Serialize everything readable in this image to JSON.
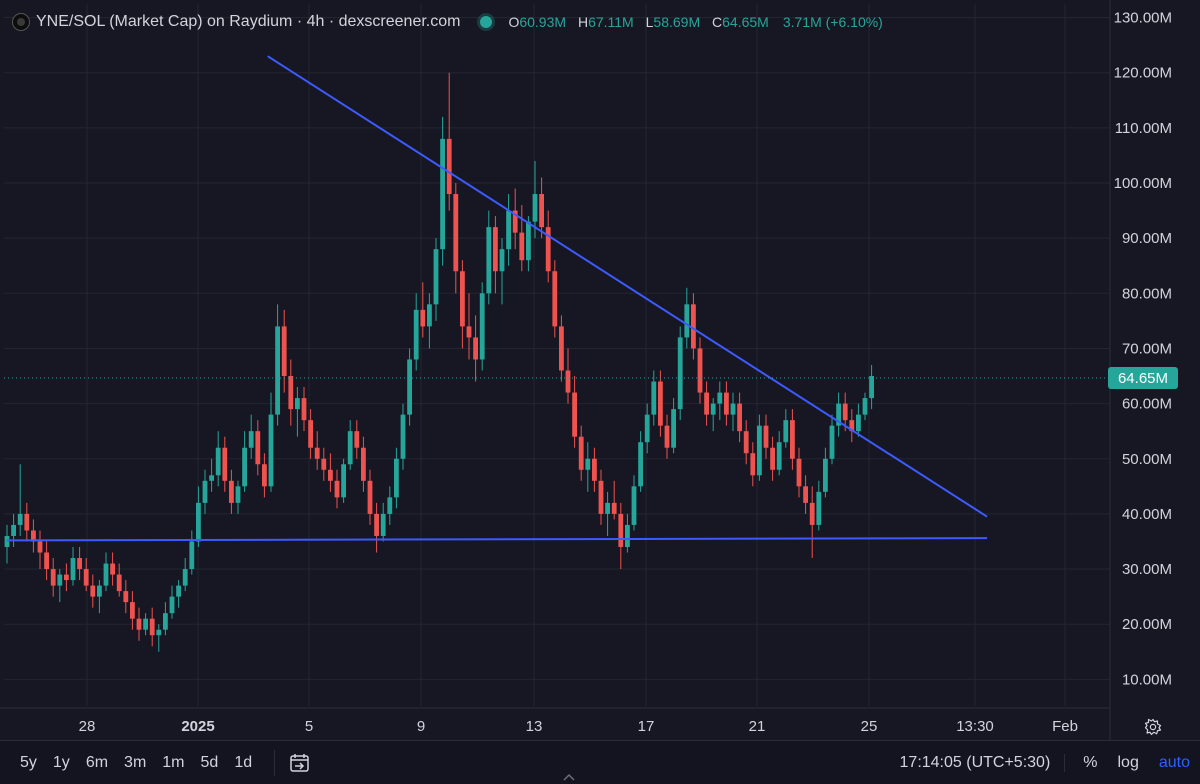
{
  "legend": {
    "title": "YNE/SOL (Market Cap) on Raydium · 4h · dexscreener.com",
    "open_label": "O",
    "open": "60.93M",
    "high_label": "H",
    "high": "67.11M",
    "low_label": "L",
    "low": "58.69M",
    "close_label": "C",
    "close": "64.65M",
    "change": "3.71M (+6.10%)"
  },
  "chart_data": {
    "type": "candlestick",
    "title": "YNE/SOL (Market Cap) on Raydium · 4h · dexscreener.com",
    "y_unit": "M",
    "ylim": [
      0,
      132
    ],
    "y_ticks": [
      "130.00M",
      "120.00M",
      "110.00M",
      "100.00M",
      "90.00M",
      "80.00M",
      "70.00M",
      "60.00M",
      "50.00M",
      "40.00M",
      "30.00M",
      "20.00M",
      "10.00M"
    ],
    "y_tick_values": [
      130,
      120,
      110,
      100,
      90,
      80,
      70,
      60,
      50,
      40,
      30,
      20,
      10
    ],
    "x_ticks": [
      "28",
      "2025",
      "5",
      "9",
      "13",
      "17",
      "21",
      "25",
      "13:30",
      "Feb"
    ],
    "x_tick_bold": [
      false,
      true,
      false,
      false,
      false,
      false,
      false,
      false,
      false,
      false
    ],
    "last_price": 64.65,
    "last_price_label": "64.65M",
    "up_color": "#26a69a",
    "down_color": "#ef5350",
    "trendline_color": "#3d5afe",
    "trendlines": [
      {
        "from": [
          39.5,
          123
        ],
        "to": [
          148.5,
          39.5
        ]
      },
      {
        "from": [
          0,
          35.2
        ],
        "to": [
          148.5,
          35.6
        ]
      }
    ],
    "ohlc": [
      [
        34,
        38,
        31,
        36
      ],
      [
        36,
        40,
        34,
        38
      ],
      [
        38,
        49,
        36,
        40
      ],
      [
        40,
        42,
        35,
        37
      ],
      [
        37,
        39,
        33,
        35
      ],
      [
        35,
        37,
        30,
        33
      ],
      [
        33,
        35,
        28,
        30
      ],
      [
        30,
        32,
        25,
        27
      ],
      [
        27,
        30,
        24,
        29
      ],
      [
        29,
        31,
        26,
        28
      ],
      [
        28,
        34,
        27,
        32
      ],
      [
        32,
        34,
        28,
        30
      ],
      [
        30,
        32,
        26,
        27
      ],
      [
        27,
        29,
        23,
        25
      ],
      [
        25,
        28,
        22,
        27
      ],
      [
        27,
        33,
        26,
        31
      ],
      [
        31,
        33,
        27,
        29
      ],
      [
        29,
        31,
        25,
        26
      ],
      [
        26,
        28,
        22,
        24
      ],
      [
        24,
        26,
        19,
        21
      ],
      [
        21,
        23,
        17,
        19
      ],
      [
        19,
        22,
        18,
        21
      ],
      [
        21,
        23,
        16,
        18
      ],
      [
        18,
        20,
        15,
        19
      ],
      [
        19,
        24,
        18,
        22
      ],
      [
        22,
        27,
        21,
        25
      ],
      [
        25,
        28,
        23,
        27
      ],
      [
        27,
        32,
        26,
        30
      ],
      [
        30,
        37,
        29,
        35
      ],
      [
        35,
        45,
        34,
        42
      ],
      [
        42,
        48,
        40,
        46
      ],
      [
        46,
        50,
        44,
        47
      ],
      [
        47,
        55,
        45,
        52
      ],
      [
        52,
        54,
        44,
        46
      ],
      [
        46,
        48,
        40,
        42
      ],
      [
        42,
        46,
        40,
        45
      ],
      [
        45,
        55,
        44,
        52
      ],
      [
        52,
        58,
        50,
        55
      ],
      [
        55,
        57,
        47,
        49
      ],
      [
        49,
        51,
        43,
        45
      ],
      [
        45,
        62,
        44,
        58
      ],
      [
        58,
        78,
        56,
        74
      ],
      [
        74,
        77,
        62,
        65
      ],
      [
        65,
        68,
        56,
        59
      ],
      [
        59,
        63,
        54,
        61
      ],
      [
        61,
        63,
        55,
        57
      ],
      [
        57,
        59,
        50,
        52
      ],
      [
        52,
        55,
        48,
        50
      ],
      [
        50,
        52,
        46,
        48
      ],
      [
        48,
        51,
        44,
        46
      ],
      [
        46,
        48,
        41,
        43
      ],
      [
        43,
        50,
        42,
        49
      ],
      [
        49,
        57,
        48,
        55
      ],
      [
        55,
        57,
        50,
        52
      ],
      [
        52,
        54,
        44,
        46
      ],
      [
        46,
        48,
        38,
        40
      ],
      [
        40,
        42,
        33,
        36
      ],
      [
        36,
        42,
        35,
        40
      ],
      [
        40,
        45,
        38,
        43
      ],
      [
        43,
        52,
        41,
        50
      ],
      [
        50,
        60,
        48,
        58
      ],
      [
        58,
        70,
        56,
        68
      ],
      [
        68,
        80,
        66,
        77
      ],
      [
        77,
        82,
        72,
        74
      ],
      [
        74,
        80,
        70,
        78
      ],
      [
        78,
        90,
        75,
        88
      ],
      [
        88,
        112,
        85,
        108
      ],
      [
        108,
        120,
        95,
        98
      ],
      [
        98,
        100,
        80,
        84
      ],
      [
        84,
        86,
        70,
        74
      ],
      [
        74,
        80,
        68,
        72
      ],
      [
        72,
        76,
        64,
        68
      ],
      [
        68,
        82,
        66,
        80
      ],
      [
        80,
        95,
        78,
        92
      ],
      [
        92,
        94,
        80,
        84
      ],
      [
        84,
        90,
        78,
        88
      ],
      [
        88,
        98,
        85,
        95
      ],
      [
        95,
        99,
        88,
        91
      ],
      [
        91,
        96,
        84,
        86
      ],
      [
        86,
        94,
        84,
        93
      ],
      [
        93,
        104,
        90,
        98
      ],
      [
        98,
        101,
        90,
        92
      ],
      [
        92,
        95,
        82,
        84
      ],
      [
        84,
        86,
        72,
        74
      ],
      [
        74,
        76,
        64,
        66
      ],
      [
        66,
        70,
        60,
        62
      ],
      [
        62,
        65,
        52,
        54
      ],
      [
        54,
        56,
        46,
        48
      ],
      [
        48,
        53,
        44,
        50
      ],
      [
        50,
        52,
        44,
        46
      ],
      [
        46,
        48,
        38,
        40
      ],
      [
        40,
        44,
        36,
        42
      ],
      [
        42,
        46,
        39,
        40
      ],
      [
        40,
        42,
        30,
        34
      ],
      [
        34,
        40,
        33,
        38
      ],
      [
        38,
        47,
        37,
        45
      ],
      [
        45,
        55,
        44,
        53
      ],
      [
        53,
        60,
        51,
        58
      ],
      [
        58,
        66,
        56,
        64
      ],
      [
        64,
        66,
        54,
        56
      ],
      [
        56,
        58,
        50,
        52
      ],
      [
        52,
        61,
        51,
        59
      ],
      [
        59,
        74,
        57,
        72
      ],
      [
        72,
        81,
        70,
        78
      ],
      [
        78,
        80,
        68,
        70
      ],
      [
        70,
        72,
        60,
        62
      ],
      [
        62,
        64,
        56,
        58
      ],
      [
        58,
        61,
        55,
        60
      ],
      [
        60,
        64,
        57,
        62
      ],
      [
        62,
        64,
        56,
        58
      ],
      [
        58,
        62,
        55,
        60
      ],
      [
        60,
        62,
        53,
        55
      ],
      [
        55,
        57,
        49,
        51
      ],
      [
        51,
        53,
        45,
        47
      ],
      [
        47,
        58,
        46,
        56
      ],
      [
        56,
        58,
        50,
        52
      ],
      [
        52,
        54,
        46,
        48
      ],
      [
        48,
        55,
        47,
        53
      ],
      [
        53,
        59,
        52,
        57
      ],
      [
        57,
        59,
        48,
        50
      ],
      [
        50,
        52,
        43,
        45
      ],
      [
        45,
        47,
        40,
        42
      ],
      [
        42,
        45,
        32,
        38
      ],
      [
        38,
        46,
        37,
        44
      ],
      [
        44,
        52,
        43,
        50
      ],
      [
        50,
        58,
        49,
        56
      ],
      [
        56,
        62,
        54,
        60
      ],
      [
        60,
        62,
        55,
        57
      ],
      [
        57,
        59,
        53,
        55
      ],
      [
        55,
        60,
        54,
        58
      ],
      [
        58,
        62,
        57,
        61
      ],
      [
        61,
        67,
        59,
        65
      ]
    ]
  },
  "toolbar": {
    "timeframes": [
      "5y",
      "1y",
      "6m",
      "3m",
      "1m",
      "5d",
      "1d"
    ],
    "clock": "17:14:05 (UTC+5:30)",
    "percent": "%",
    "log": "log",
    "auto": "auto"
  }
}
